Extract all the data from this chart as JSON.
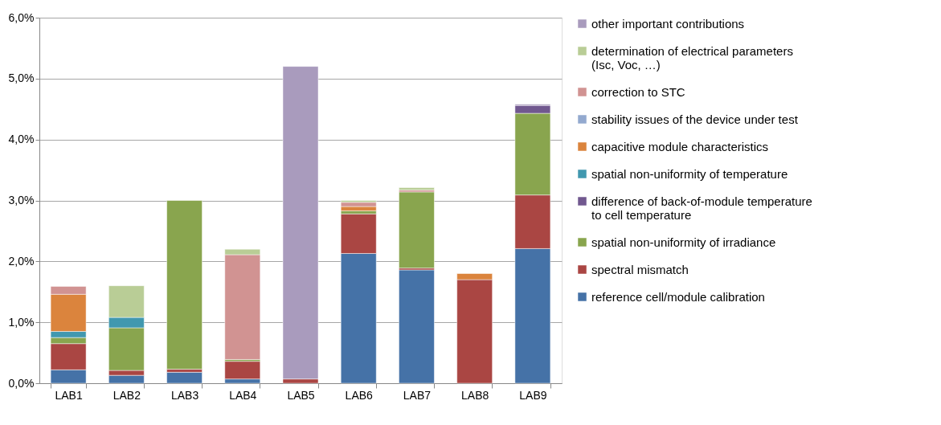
{
  "chart_data": {
    "type": "bar",
    "stacked": true,
    "categories": [
      "LAB1",
      "LAB2",
      "LAB3",
      "LAB4",
      "LAB5",
      "LAB6",
      "LAB7",
      "LAB8",
      "LAB9"
    ],
    "ylim": [
      0,
      6
    ],
    "yticks": [
      {
        "value": 0,
        "label": "0,0%"
      },
      {
        "value": 1,
        "label": "1,0%"
      },
      {
        "value": 2,
        "label": "2,0%"
      },
      {
        "value": 3,
        "label": "3,0%"
      },
      {
        "value": 4,
        "label": "4,0%"
      },
      {
        "value": 5,
        "label": "5,0%"
      },
      {
        "value": 6,
        "label": "6,0%"
      }
    ],
    "grid": "y",
    "legend": "right",
    "series": [
      {
        "name": "reference cell/module calibration",
        "color": "#4572a7",
        "values": [
          0.22,
          0.13,
          0.18,
          0.07,
          null,
          2.13,
          1.86,
          null,
          2.21
        ]
      },
      {
        "name": "spectral mismatch",
        "color": "#aa4643",
        "values": [
          0.43,
          0.08,
          0.05,
          0.29,
          0.07,
          0.65,
          0.03,
          1.7,
          0.88
        ]
      },
      {
        "name": "spatial non-uniformity of irradiance",
        "color": "#89a54e",
        "values": [
          0.1,
          0.7,
          2.77,
          0.03,
          null,
          0.05,
          1.25,
          null,
          1.34
        ]
      },
      {
        "name": "difference of back-of-module temperature to cell temperature",
        "color": "#71588f",
        "values": [
          null,
          null,
          null,
          null,
          null,
          null,
          null,
          null,
          0.13
        ]
      },
      {
        "name": "spatial non-uniformity of temperature",
        "color": "#4198af",
        "values": [
          0.1,
          0.17,
          null,
          null,
          null,
          null,
          null,
          null,
          null
        ]
      },
      {
        "name": "capacitive module characteristics",
        "color": "#db843d",
        "values": [
          0.61,
          null,
          null,
          null,
          null,
          0.07,
          null,
          0.1,
          null
        ]
      },
      {
        "name": "stability issues of the device under test",
        "color": "#93a9cf",
        "values": [
          null,
          null,
          null,
          null,
          null,
          null,
          null,
          null,
          null
        ]
      },
      {
        "name": "correction to STC",
        "color": "#d19392",
        "values": [
          0.13,
          null,
          null,
          1.72,
          null,
          0.07,
          0.03,
          null,
          null
        ]
      },
      {
        "name": "determination of electrical parameters (Isc, Voc, …)",
        "color": "#b9cd96",
        "values": [
          null,
          0.52,
          null,
          0.09,
          null,
          0.03,
          0.04,
          null,
          null
        ]
      },
      {
        "name": "other important contributions",
        "color": "#a99bbd",
        "values": [
          null,
          null,
          null,
          null,
          5.13,
          null,
          null,
          null,
          0.02
        ]
      }
    ]
  }
}
